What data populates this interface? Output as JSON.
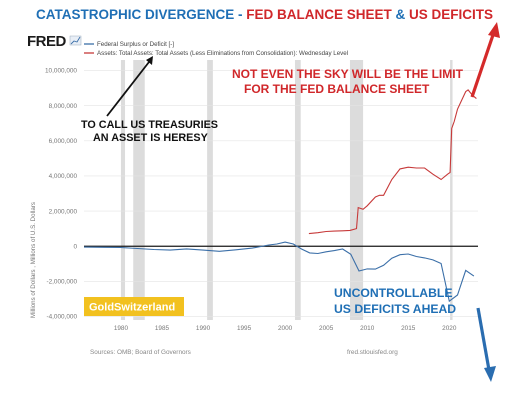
{
  "headline": {
    "part1": "CATASTROPHIC DIVERGENCE - ",
    "part2": "FED BALANCE SHEET",
    "part3": " & ",
    "part4": "US DEFICITS"
  },
  "fred_logo": "FRED",
  "legend": {
    "series1": "Federal Surplus or Deficit [-]",
    "series2": "Assets: Total Assets: Total Assets (Less Eliminations from Consolidation): Wednesday Level"
  },
  "annotations": {
    "sky_line1": "NOT EVEN THE SKY WILL BE THE LIMIT",
    "sky_line2": "FOR THE FED BALANCE SHEET",
    "heresy_line1": "TO CALL US TREASURIES",
    "heresy_line2": "AN ASSET IS HERESY",
    "deficit_line1": "UNCONTROLLABLE",
    "deficit_line2": "US DEFICITS AHEAD"
  },
  "badge": "GoldSwitzerland",
  "footer": {
    "source": "Sources: OMB; Board of Governors",
    "site": "fred.stlouisfed.org"
  },
  "colors": {
    "deficit": "#3b6fa8",
    "assets": "#c73a3a",
    "recession": "#dcdcdc",
    "arrow_red": "#d42a2a",
    "arrow_blue": "#2a6db0",
    "badge": "#f2c11f"
  },
  "chart_data": {
    "type": "line",
    "ylabel": "Millions of Dollars , Millions of U.S. Dollars",
    "yticks": [
      "10,000,000",
      "8,000,000",
      "6,000,000",
      "4,000,000",
      "2,000,000",
      "0",
      "-2,000,000",
      "-4,000,000"
    ],
    "ytick_values": [
      10000000,
      8000000,
      6000000,
      4000000,
      2000000,
      0,
      -2000000,
      -4000000
    ],
    "xticks": [
      1980,
      1985,
      1990,
      1995,
      2000,
      2005,
      2010,
      2015,
      2020
    ],
    "xlim": [
      1975.5,
      2023.5
    ],
    "ylim": [
      -4200000,
      10600000
    ],
    "recessions": [
      [
        1980.0,
        1980.5
      ],
      [
        1981.5,
        1982.9
      ],
      [
        1990.5,
        1991.2
      ],
      [
        2001.2,
        2001.9
      ],
      [
        2007.9,
        2009.5
      ],
      [
        2020.1,
        2020.4
      ]
    ],
    "series": [
      {
        "name": "Federal Surplus or Deficit [-]",
        "x": [
          1975.5,
          1978,
          1980,
          1982,
          1984,
          1986,
          1988,
          1990,
          1992,
          1994,
          1996,
          1998,
          1999,
          2000,
          2001,
          2002,
          2003,
          2004,
          2005,
          2006,
          2007,
          2008,
          2009,
          2010,
          2011,
          2012,
          2013,
          2014,
          2015,
          2016,
          2017,
          2018,
          2019,
          2020,
          2021,
          2022,
          2023
        ],
        "values": [
          -53000,
          -59000,
          -74000,
          -128000,
          -185000,
          -221000,
          -155000,
          -221000,
          -290000,
          -203000,
          -107000,
          69000,
          126000,
          236000,
          128000,
          -158000,
          -378000,
          -413000,
          -318000,
          -248000,
          -161000,
          -459000,
          -1413000,
          -1294000,
          -1300000,
          -1087000,
          -680000,
          -485000,
          -442000,
          -585000,
          -665000,
          -779000,
          -984000,
          -3132000,
          -2775000,
          -1375000,
          -1700000
        ]
      },
      {
        "name": "Assets: Total Assets: Total Assets (Less Eliminations from Consolidation): Wednesday Level",
        "x": [
          2002.9,
          2004,
          2005,
          2006,
          2007,
          2007.9,
          2008.7,
          2008.9,
          2009.5,
          2010,
          2011,
          2011.5,
          2012,
          2013,
          2014,
          2015,
          2016,
          2017,
          2018,
          2019,
          2019.8,
          2020.1,
          2020.3,
          2020.6,
          2021,
          2021.5,
          2022,
          2022.3,
          2022.8,
          2023.3
        ],
        "values": [
          720000,
          770000,
          840000,
          860000,
          880000,
          900000,
          1000000,
          2200000,
          2100000,
          2300000,
          2800000,
          2900000,
          2900000,
          3800000,
          4400000,
          4500000,
          4450000,
          4450000,
          4100000,
          3800000,
          4100000,
          4200000,
          6700000,
          7100000,
          7800000,
          8300000,
          8800000,
          8900000,
          8600000,
          8400000
        ]
      }
    ]
  }
}
